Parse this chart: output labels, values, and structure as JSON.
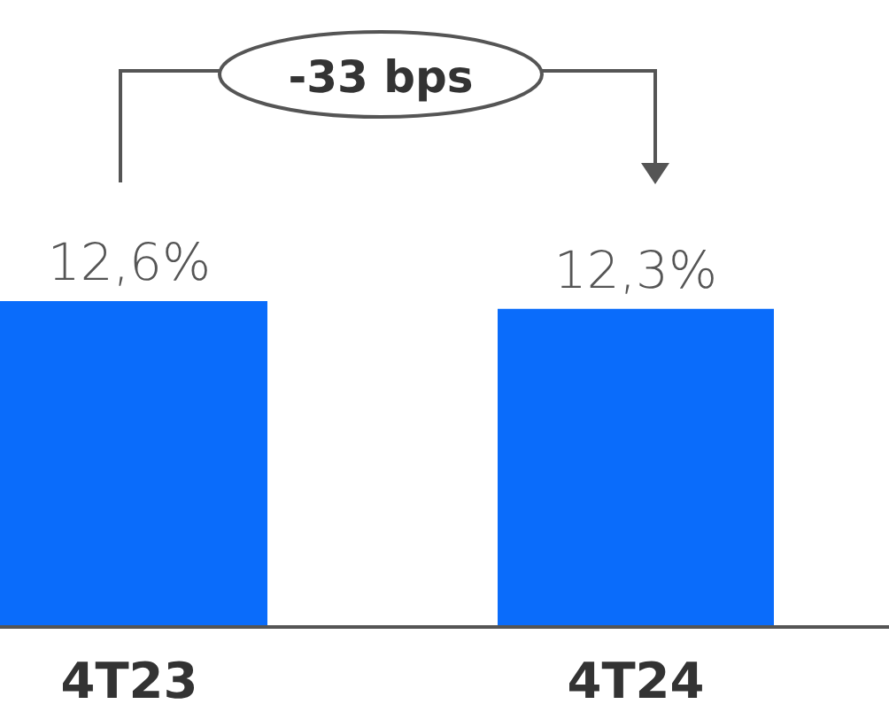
{
  "chart_data": {
    "type": "bar",
    "categories": [
      "4T23",
      "4T24"
    ],
    "values": [
      12.6,
      12.3
    ],
    "value_labels": [
      "12,6%",
      "12,3%"
    ],
    "color": "#0a6cfb",
    "tick_labels": "x",
    "annotations": [
      "-33 bps"
    ]
  }
}
